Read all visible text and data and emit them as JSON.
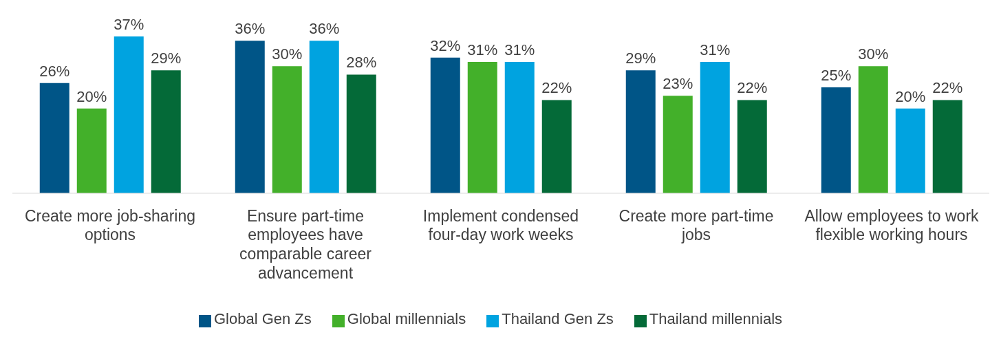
{
  "chart_data": {
    "type": "bar",
    "categories": [
      "Create more job-sharing options",
      "Ensure part-time employees have comparable career advancement",
      "Implement condensed four-day work weeks",
      "Create more part-time jobs",
      "Allow employees to work flexible working hours"
    ],
    "series": [
      {
        "name": "Global Gen Zs",
        "color": "#005587",
        "values": [
          26,
          36,
          32,
          29,
          25
        ],
        "value_labels": [
          "26%",
          "36%",
          "32%",
          "29%",
          "25%"
        ]
      },
      {
        "name": "Global millennials",
        "color": "#43b02a",
        "values": [
          20,
          30,
          31,
          23,
          30
        ],
        "value_labels": [
          "20%",
          "30%",
          "31%",
          "23%",
          "30%"
        ]
      },
      {
        "name": "Thailand Gen Zs",
        "color": "#00a3e0",
        "values": [
          37,
          36,
          31,
          31,
          20
        ],
        "value_labels": [
          "37%",
          "36%",
          "31%",
          "31%",
          "20%"
        ]
      },
      {
        "name": "Thailand millennials",
        "color": "#046a38",
        "values": [
          29,
          28,
          22,
          22,
          22
        ],
        "value_labels": [
          "29%",
          "28%",
          "22%",
          "22%",
          "22%"
        ]
      }
    ],
    "tick_labels": "x",
    "grid": false,
    "legend": "bottom"
  }
}
